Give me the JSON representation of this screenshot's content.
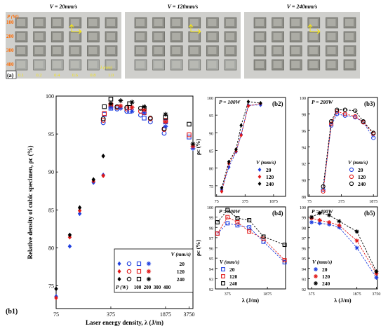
{
  "photo_panel": {
    "label": "(a)",
    "titles": [
      "V = 20mm/s",
      "V = 120mm/s",
      "V = 240mm/s"
    ],
    "row_axis_label": "P (W)",
    "row_values": [
      "100",
      "200",
      "300",
      "400"
    ],
    "col_axis_label": "λ (mm)",
    "col_values": [
      "0.1",
      "0.2",
      "0.4",
      "0.6",
      "0.8",
      "1.0"
    ]
  },
  "colors": {
    "blue": "#1f3fe0",
    "red": "#e01818",
    "black": "#000000",
    "photo_bg": "#cfcfcc",
    "cube": "#8e8e88"
  },
  "chart_data": [
    {
      "id": "b1",
      "panel_label": "(b1)",
      "type": "scatter",
      "xlabel": "Laser energy density, λ (J/m)",
      "ylabel": "Relative density of cubic specimen, ρc (%)",
      "x_scale": "log",
      "xlim": [
        75,
        4200
      ],
      "ylim": [
        72,
        100
      ],
      "x_ticks": [
        75,
        375,
        1875,
        3750
      ],
      "y_ticks": [
        75,
        80,
        85,
        90,
        95,
        100
      ],
      "legend": {
        "position": "bottom-right",
        "header": "V (mm/s)",
        "speeds": [
          "20",
          "120",
          "240"
        ],
        "powers_label": "P (W)",
        "powers": [
          "100",
          "200",
          "300",
          "400"
        ]
      },
      "series": [
        {
          "speed": "20",
          "power": "100",
          "marker": "diamond",
          "color": "blue",
          "x": [
            75,
            112,
            150,
            225,
            300
          ],
          "y": [
            73.6,
            80.2,
            84.5,
            88.6,
            89.6
          ]
        },
        {
          "speed": "120",
          "power": "100",
          "marker": "diamond",
          "color": "red",
          "x": [
            75,
            112,
            150,
            225,
            300
          ],
          "y": [
            73.4,
            81.4,
            84.9,
            88.8,
            89.5
          ]
        },
        {
          "speed": "240",
          "power": "100",
          "marker": "diamond",
          "color": "black",
          "x": [
            75,
            112,
            150,
            225,
            300
          ],
          "y": [
            74.6,
            81.7,
            85.3,
            89.0,
            92.1
          ]
        },
        {
          "speed": "20",
          "power": "200",
          "marker": "circle",
          "color": "blue",
          "x": [
            300,
            450,
            600,
            900,
            1200,
            1800
          ],
          "y": [
            96.5,
            98.3,
            98.0,
            97.5,
            96.6,
            95.1
          ]
        },
        {
          "speed": "120",
          "power": "200",
          "marker": "circle",
          "color": "red",
          "x": [
            300,
            450,
            600,
            900,
            1200,
            1800
          ],
          "y": [
            96.8,
            98.5,
            98.3,
            98.0,
            97.0,
            95.6
          ]
        },
        {
          "speed": "240",
          "power": "200",
          "marker": "circle",
          "color": "black",
          "x": [
            300,
            450,
            600,
            900,
            1200,
            1800
          ],
          "y": [
            97.0,
            98.6,
            98.5,
            98.4,
            97.1,
            95.7
          ]
        },
        {
          "speed": "20",
          "power": "300",
          "marker": "square",
          "color": "blue",
          "x": [
            310,
            375,
            650,
            1000,
            1875,
            3750
          ],
          "y": [
            97.6,
            98.4,
            98.0,
            97.1,
            96.6,
            94.6
          ]
        },
        {
          "speed": "120",
          "power": "300",
          "marker": "square",
          "color": "red",
          "x": [
            310,
            375,
            650,
            1000,
            1875,
            3750
          ],
          "y": [
            97.7,
            98.8,
            98.5,
            97.8,
            96.8,
            94.9
          ]
        },
        {
          "speed": "240",
          "power": "300",
          "marker": "square",
          "color": "black",
          "x": [
            310,
            375,
            650,
            1000,
            1875,
            3750
          ],
          "y": [
            98.6,
            99.6,
            99.0,
            98.4,
            97.2,
            96.3
          ]
        },
        {
          "speed": "20",
          "power": "400",
          "marker": "asterisk",
          "color": "blue",
          "x": [
            375,
            500,
            700,
            1000,
            1875,
            4200
          ],
          "y": [
            98.5,
            98.4,
            98.0,
            97.8,
            96.0,
            93.1
          ]
        },
        {
          "speed": "120",
          "power": "400",
          "marker": "asterisk",
          "color": "red",
          "x": [
            375,
            500,
            700,
            1000,
            1875,
            4200
          ],
          "y": [
            98.9,
            98.7,
            98.5,
            98.2,
            96.6,
            93.4
          ]
        },
        {
          "speed": "240",
          "power": "400",
          "marker": "asterisk",
          "color": "black",
          "x": [
            375,
            500,
            700,
            1000,
            1875,
            4200
          ],
          "y": [
            99.0,
            99.4,
            99.2,
            98.6,
            97.6,
            93.7
          ]
        }
      ]
    },
    {
      "id": "b2",
      "panel_label": "(b2)",
      "annotation": "P = 100W",
      "type": "line",
      "xlabel": "",
      "ylabel": "ρc (%)",
      "x_scale": "log",
      "xlim": [
        70,
        3700
      ],
      "ylim": [
        72,
        100
      ],
      "x_ticks": [
        75,
        375,
        1875
      ],
      "y_ticks": [
        75,
        80,
        85,
        90,
        95,
        100
      ],
      "legend": {
        "position": "bottom-right",
        "header": "V (mm/s)",
        "entries": [
          "20",
          "120",
          "240"
        ]
      },
      "series": [
        {
          "name": "20",
          "marker": "diamond",
          "color": "blue",
          "x": [
            100,
            150,
            225,
            300,
            450,
            900
          ],
          "y": [
            73.8,
            80.3,
            84.6,
            89.5,
            97.8,
            97.9
          ]
        },
        {
          "name": "120",
          "marker": "diamond",
          "color": "red",
          "x": [
            100,
            150,
            225,
            300,
            450,
            900
          ],
          "y": [
            73.4,
            81.3,
            84.8,
            89.3,
            97.6,
            98.3
          ]
        },
        {
          "name": "240",
          "marker": "diamond",
          "color": "black",
          "x": [
            100,
            150,
            225,
            300,
            450,
            900
          ],
          "y": [
            74.4,
            81.8,
            85.3,
            92.1,
            98.8,
            98.4
          ]
        }
      ]
    },
    {
      "id": "b3",
      "panel_label": "(b3)",
      "annotation": "P = 200W",
      "type": "line",
      "xlabel": "",
      "ylabel": "",
      "x_scale": "log",
      "xlim": [
        70,
        2300
      ],
      "ylim": [
        88,
        100
      ],
      "x_ticks": [
        75,
        375,
        1875
      ],
      "y_ticks": [
        88,
        90,
        92,
        94,
        96,
        98,
        100
      ],
      "legend": {
        "position": "bottom-right",
        "header": "V (mm/s)",
        "entries": [
          "20",
          "120",
          "240"
        ]
      },
      "series": [
        {
          "name": "20",
          "marker": "circle",
          "color": "blue",
          "x": [
            150,
            225,
            300,
            450,
            750,
            1125,
            1875
          ],
          "y": [
            88.8,
            96.6,
            98.0,
            97.8,
            97.6,
            97.0,
            95.1
          ]
        },
        {
          "name": "120",
          "marker": "circle",
          "color": "red",
          "x": [
            150,
            225,
            300,
            450,
            750,
            1125,
            1875
          ],
          "y": [
            88.6,
            96.8,
            98.3,
            98.0,
            97.7,
            97.0,
            95.6
          ]
        },
        {
          "name": "240",
          "marker": "circle",
          "color": "black",
          "x": [
            150,
            225,
            300,
            450,
            750,
            1125,
            1875
          ],
          "y": [
            89.2,
            97.1,
            98.5,
            98.5,
            98.4,
            97.1,
            95.7
          ]
        }
      ]
    },
    {
      "id": "b4",
      "panel_label": "(b4)",
      "annotation": "P = 300W",
      "type": "line",
      "xlabel": "λ (J/m)",
      "ylabel": "ρc (%)",
      "x_scale": "log",
      "xlim": [
        230,
        3900
      ],
      "ylim": [
        92,
        100
      ],
      "x_ticks": [
        375,
        1875
      ],
      "y_ticks": [
        92,
        93,
        94,
        95,
        96,
        97,
        98,
        99,
        100
      ],
      "legend": {
        "position": "bottom-left",
        "header": "V (mm/s)",
        "entries": [
          "20",
          "120",
          "240"
        ]
      },
      "series": [
        {
          "name": "20",
          "marker": "square",
          "color": "blue",
          "x": [
            250,
            375,
            560,
            900,
            1600,
            3750
          ],
          "y": [
            97.4,
            98.4,
            98.2,
            98.0,
            96.6,
            94.6
          ]
        },
        {
          "name": "120",
          "marker": "square",
          "color": "red",
          "x": [
            250,
            375,
            560,
            900,
            1600,
            3750
          ],
          "y": [
            97.4,
            99.0,
            98.5,
            97.6,
            96.9,
            94.8
          ]
        },
        {
          "name": "240",
          "marker": "square",
          "color": "black",
          "x": [
            250,
            375,
            560,
            900,
            1600,
            3750
          ],
          "y": [
            98.5,
            99.7,
            98.9,
            98.7,
            97.1,
            96.3
          ]
        }
      ]
    },
    {
      "id": "b5",
      "panel_label": "(b5)",
      "annotation": "P = 400W",
      "type": "line",
      "xlabel": "λ (J/m)",
      "ylabel": "",
      "x_scale": "log",
      "xlim": [
        330,
        3900
      ],
      "ylim": [
        92,
        100
      ],
      "x_ticks": [
        375,
        1875,
        3750
      ],
      "y_ticks": [
        92,
        93,
        94,
        95,
        96,
        97,
        98,
        99,
        100
      ],
      "legend": {
        "position": "bottom-left",
        "header": "V (mm/s)",
        "entries": [
          "20",
          "120",
          "240"
        ]
      },
      "series": [
        {
          "name": "20",
          "marker": "asterisk",
          "color": "blue",
          "x": [
            375,
            500,
            700,
            1000,
            1875,
            3750
          ],
          "y": [
            98.5,
            98.4,
            98.3,
            98.0,
            96.0,
            93.1
          ]
        },
        {
          "name": "120",
          "marker": "asterisk",
          "color": "red",
          "x": [
            375,
            500,
            700,
            1000,
            1875,
            3750
          ],
          "y": [
            98.9,
            98.7,
            98.5,
            98.2,
            96.7,
            93.5
          ]
        },
        {
          "name": "240",
          "marker": "asterisk",
          "color": "black",
          "x": [
            375,
            500,
            700,
            1000,
            1875,
            3750
          ],
          "y": [
            99.0,
            99.4,
            99.2,
            98.6,
            97.6,
            93.7
          ]
        }
      ]
    }
  ]
}
